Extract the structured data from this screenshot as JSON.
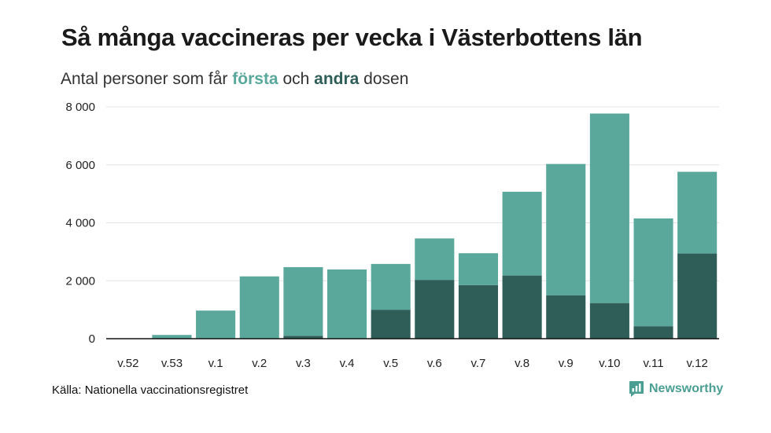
{
  "header": {
    "title": "Så många vaccineras per vecka i Västerbottens län",
    "subtitle_pre": "Antal personer som får ",
    "subtitle_first": "första",
    "subtitle_mid": " och ",
    "subtitle_second": "andra",
    "subtitle_post": " dosen"
  },
  "footer": {
    "source": "Källa: Nationella vaccinationsregistret",
    "brand": "Newsworthy"
  },
  "colors": {
    "first_dose": "#5aa89b",
    "second_dose": "#2f5d57",
    "grid": "#e3e3e3",
    "axis": "#111111",
    "brand": "#4a9e92"
  },
  "chart_data": {
    "type": "bar",
    "stacked": true,
    "categories": [
      "v.52",
      "v.53",
      "v.1",
      "v.2",
      "v.3",
      "v.4",
      "v.5",
      "v.6",
      "v.7",
      "v.8",
      "v.9",
      "v.10",
      "v.11",
      "v.12"
    ],
    "series": [
      {
        "name": "andra",
        "values": [
          0,
          0,
          0,
          0,
          100,
          0,
          1000,
          2030,
          1850,
          2180,
          1500,
          1230,
          430,
          2940
        ]
      },
      {
        "name": "första",
        "values": [
          0,
          130,
          970,
          2150,
          2370,
          2390,
          1580,
          1430,
          1100,
          2890,
          4530,
          6540,
          3720,
          2820
        ]
      }
    ],
    "yticks": [
      0,
      2000,
      4000,
      6000,
      8000
    ],
    "ytick_labels": [
      "0",
      "2 000",
      "4 000",
      "6 000",
      "8 000"
    ],
    "ylim": [
      0,
      8000
    ],
    "grid": true,
    "legend": "none"
  }
}
